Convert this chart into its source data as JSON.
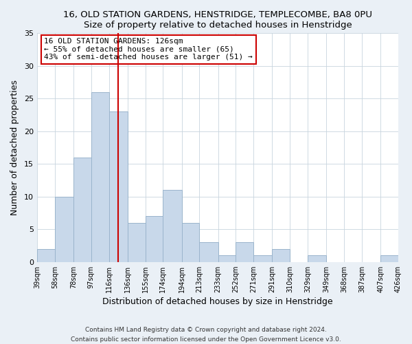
{
  "title": "16, OLD STATION GARDENS, HENSTRIDGE, TEMPLECOMBE, BA8 0PU",
  "subtitle": "Size of property relative to detached houses in Henstridge",
  "xlabel": "Distribution of detached houses by size in Henstridge",
  "ylabel": "Number of detached properties",
  "bar_color": "#c8d8ea",
  "bar_edge_color": "#9ab4cc",
  "bin_edges": [
    39,
    58,
    78,
    97,
    116,
    136,
    155,
    174,
    194,
    213,
    233,
    252,
    271,
    291,
    310,
    329,
    349,
    368,
    387,
    407,
    426
  ],
  "bar_heights": [
    2,
    10,
    16,
    26,
    23,
    6,
    7,
    11,
    6,
    3,
    1,
    3,
    1,
    2,
    0,
    1,
    0,
    0,
    0,
    1
  ],
  "tick_labels": [
    "39sqm",
    "58sqm",
    "78sqm",
    "97sqm",
    "116sqm",
    "136sqm",
    "155sqm",
    "174sqm",
    "194sqm",
    "213sqm",
    "233sqm",
    "252sqm",
    "271sqm",
    "291sqm",
    "310sqm",
    "329sqm",
    "349sqm",
    "368sqm",
    "387sqm",
    "407sqm",
    "426sqm"
  ],
  "ylim": [
    0,
    35
  ],
  "yticks": [
    0,
    5,
    10,
    15,
    20,
    25,
    30,
    35
  ],
  "vline_x": 126,
  "vline_color": "#cc0000",
  "annotation_title": "16 OLD STATION GARDENS: 126sqm",
  "annotation_line1": "← 55% of detached houses are smaller (65)",
  "annotation_line2": "43% of semi-detached houses are larger (51) →",
  "footer1": "Contains HM Land Registry data © Crown copyright and database right 2024.",
  "footer2": "Contains public sector information licensed under the Open Government Licence v3.0.",
  "background_color": "#eaf0f6",
  "plot_bg_color": "#ffffff",
  "grid_color": "#c8d4de"
}
